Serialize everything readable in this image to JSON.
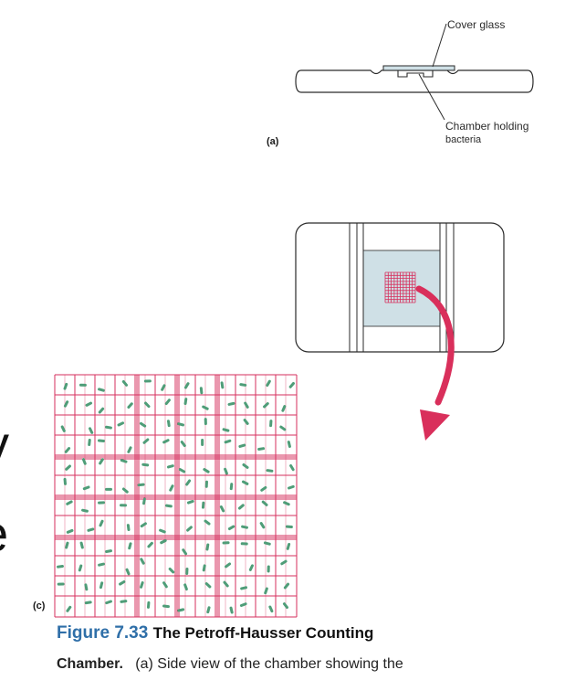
{
  "colors": {
    "grid": "#d62f5d",
    "arrow": "#d92f5b",
    "bacteria": "#4f9d78",
    "chamber_fill": "#cfe0e6",
    "caption_accent": "#2f6fa8"
  },
  "panel_a": {
    "letter": "(a)",
    "cover_glass_label": "Cover glass",
    "chamber_label_line1": "Chamber holding",
    "chamber_label_line2": "bacteria"
  },
  "panel_b": {},
  "panel_c": {
    "letter": "(c)"
  },
  "left_edge": {
    "glyph1": "y",
    "glyph2": "e"
  },
  "caption": {
    "figure_number": "Figure 7.33",
    "title": "The Petroff-Hausser Counting",
    "line2_bold": "Chamber.",
    "line2_text": "(a) Side view of the chamber showing the"
  }
}
